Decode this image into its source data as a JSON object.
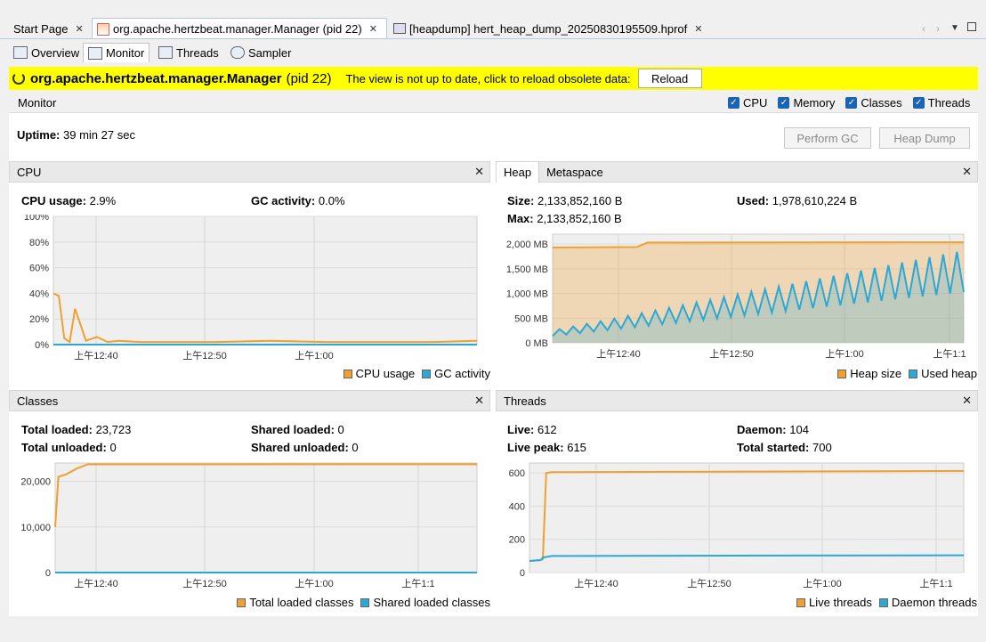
{
  "tabs": {
    "start": "Start Page",
    "manager": "org.apache.hertzbeat.manager.Manager (pid 22)",
    "heapdump": "[heapdump] hert_heap_dump_20250830195509.hprof"
  },
  "subtabs": {
    "overview": "Overview",
    "monitor": "Monitor",
    "threads": "Threads",
    "sampler": "Sampler"
  },
  "banner": {
    "app": "org.apache.hertzbeat.manager.Manager",
    "pid": "(pid 22)",
    "message": "The view is not up to date, click to reload obsolete data:",
    "reload": "Reload"
  },
  "monitor": {
    "title": "Monitor",
    "uptime_label": "Uptime:",
    "uptime_value": "39 min 27 sec",
    "checks": [
      "CPU",
      "Memory",
      "Classes",
      "Threads"
    ],
    "perform_gc": "Perform GC",
    "heap_dump": "Heap Dump"
  },
  "cpu": {
    "title": "CPU",
    "usage_label": "CPU usage:",
    "usage_value": "2.9%",
    "gc_label": "GC activity:",
    "gc_value": "0.0%",
    "legend": [
      "CPU usage",
      "GC activity"
    ]
  },
  "heap": {
    "tab_heap": "Heap",
    "tab_meta": "Metaspace",
    "size_label": "Size:",
    "size_value": "2,133,852,160 B",
    "max_label": "Max:",
    "max_value": "2,133,852,160 B",
    "used_label": "Used:",
    "used_value": "1,978,610,224 B",
    "legend": [
      "Heap size",
      "Used heap"
    ]
  },
  "classes": {
    "title": "Classes",
    "total_loaded_label": "Total loaded:",
    "total_loaded_value": "23,723",
    "total_unloaded_label": "Total unloaded:",
    "total_unloaded_value": "0",
    "shared_loaded_label": "Shared loaded:",
    "shared_loaded_value": "0",
    "shared_unloaded_label": "Shared unloaded:",
    "shared_unloaded_value": "0",
    "legend": [
      "Total loaded classes",
      "Shared loaded classes"
    ]
  },
  "threads": {
    "title": "Threads",
    "live_label": "Live:",
    "live_value": "612",
    "peak_label": "Live peak:",
    "peak_value": "615",
    "daemon_label": "Daemon:",
    "daemon_value": "104",
    "started_label": "Total started:",
    "started_value": "700",
    "legend": [
      "Live threads",
      "Daemon threads"
    ]
  },
  "colors": {
    "orange": "#f0a030",
    "blue": "#2ba8d6",
    "yellow": "#ffff00"
  },
  "chart_data": [
    {
      "type": "line",
      "name": "cpu",
      "xticks": [
        "上午12:40",
        "上午12:50",
        "上午1:00"
      ],
      "yticks": [
        "100%",
        "80%",
        "60%",
        "40%",
        "20%",
        "0%"
      ],
      "ylim": [
        0,
        100
      ],
      "series": [
        {
          "name": "CPU usage",
          "x": [
            0,
            0.5,
            1,
            1.5,
            2,
            3,
            4,
            5,
            6,
            8,
            10,
            15,
            20,
            25,
            30,
            35,
            39
          ],
          "values": [
            40,
            38,
            5,
            2,
            28,
            3,
            6,
            2,
            3,
            2,
            2,
            2,
            3,
            2,
            2,
            2,
            3
          ]
        },
        {
          "name": "GC activity",
          "x": [
            0,
            39
          ],
          "values": [
            0,
            0
          ]
        }
      ]
    },
    {
      "type": "area",
      "name": "heap",
      "xticks": [
        "上午12:40",
        "上午12:50",
        "上午1:00",
        "上午1:1"
      ],
      "yticks": [
        "2,000 MB",
        "1,500 MB",
        "1,000 MB",
        "500 MB",
        "0 MB"
      ],
      "ylim": [
        0,
        2200
      ],
      "series": [
        {
          "name": "Heap size",
          "x": [
            0,
            8,
            9,
            39
          ],
          "values": [
            1930,
            1940,
            2030,
            2035
          ]
        },
        {
          "name": "Used heap",
          "x": [
            0,
            39
          ],
          "values": [
            250,
            1870
          ]
        }
      ]
    },
    {
      "type": "line",
      "name": "classes",
      "xticks": [
        "上午12:40",
        "上午12:50",
        "上午1:00",
        "上午1:1"
      ],
      "yticks": [
        "20,000",
        "10,000",
        "0"
      ],
      "ylim": [
        0,
        24000
      ],
      "series": [
        {
          "name": "Total loaded classes",
          "x": [
            0,
            0.3,
            1,
            2,
            3,
            39
          ],
          "values": [
            10000,
            21000,
            21500,
            22800,
            23700,
            23723
          ]
        },
        {
          "name": "Shared loaded classes",
          "x": [
            0,
            39
          ],
          "values": [
            0,
            0
          ]
        }
      ]
    },
    {
      "type": "line",
      "name": "threads",
      "xticks": [
        "上午12:40",
        "上午12:50",
        "上午1:00",
        "上午1:1"
      ],
      "yticks": [
        "600",
        "400",
        "200",
        "0"
      ],
      "ylim": [
        0,
        660
      ],
      "series": [
        {
          "name": "Live threads",
          "x": [
            0,
            1,
            1.2,
            1.5,
            2,
            39
          ],
          "values": [
            70,
            75,
            80,
            600,
            605,
            612
          ]
        },
        {
          "name": "Daemon threads",
          "x": [
            0,
            1,
            1.2,
            2,
            39
          ],
          "values": [
            70,
            75,
            90,
            100,
            104
          ]
        }
      ]
    }
  ]
}
